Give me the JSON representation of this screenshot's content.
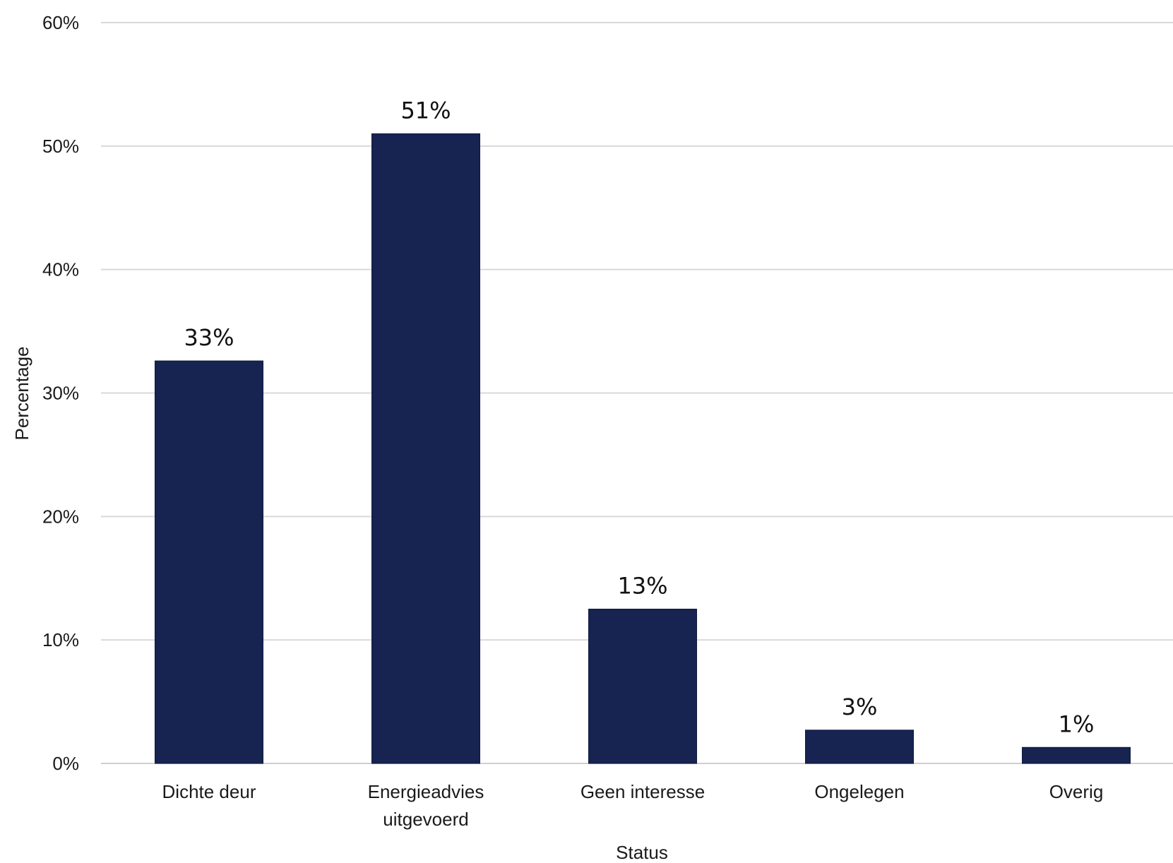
{
  "chart_data": {
    "type": "bar",
    "categories": [
      [
        "Dichte deur"
      ],
      [
        "Energieadvies",
        "uitgevoerd"
      ],
      [
        "Geen interesse"
      ],
      [
        "Ongelegen"
      ],
      [
        "Overig"
      ]
    ],
    "values": [
      32.6,
      51.0,
      12.5,
      2.7,
      1.3
    ],
    "data_labels": [
      "33%",
      "51%",
      "13%",
      "3%",
      "1%"
    ],
    "title": "",
    "xlabel": "Status",
    "ylabel": "Percentage",
    "ylim": [
      0,
      60
    ],
    "y_ticks": [
      0,
      10,
      20,
      30,
      40,
      50,
      60
    ],
    "y_tick_labels": [
      "0%",
      "10%",
      "20%",
      "30%",
      "40%",
      "50%",
      "60%"
    ],
    "grid": true,
    "legend": "none",
    "bar_color": "#172350"
  }
}
